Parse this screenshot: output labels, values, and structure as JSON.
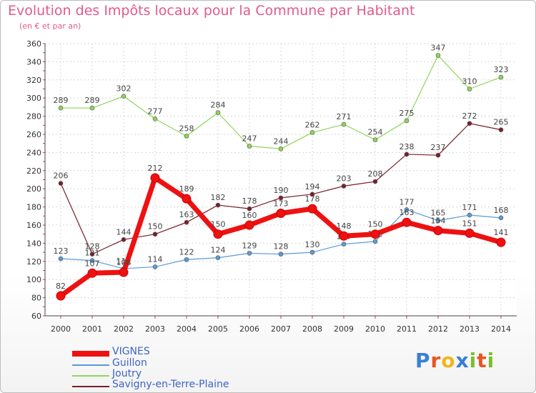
{
  "header": {
    "title": "Evolution des Impôts locaux pour la Commune par Habitant",
    "subtitle": "(en € et par an)"
  },
  "logo": {
    "letters": [
      "P",
      "r",
      "o",
      "x",
      "i",
      "t",
      "i"
    ],
    "colors": [
      "#3a7fd5",
      "#e8561f",
      "#f0b61f",
      "#3a7fd5",
      "#7abf2c",
      "#e8561f",
      "#7abf2c"
    ]
  },
  "chart_data": {
    "type": "line",
    "title": "Evolution des Impôts locaux pour la Commune par Habitant",
    "subtitle": "(en € et par an)",
    "xlabel": "",
    "ylabel": "",
    "categories": [
      "2000",
      "2001",
      "2002",
      "2003",
      "2004",
      "2005",
      "2006",
      "2007",
      "2008",
      "2009",
      "2010",
      "2011",
      "2012",
      "2013",
      "2014"
    ],
    "yticks": [
      60,
      80,
      100,
      120,
      140,
      160,
      180,
      200,
      220,
      240,
      260,
      280,
      300,
      320,
      340,
      360
    ],
    "ylim": [
      60,
      360
    ],
    "grid": true,
    "legend_position": "bottom-left",
    "series": [
      {
        "name": "Savigny-en-Terre-Plaine",
        "color": "#7a1f2b",
        "values": [
          206,
          128,
          144,
          150,
          163,
          182,
          178,
          190,
          194,
          203,
          208,
          238,
          237,
          272,
          265
        ]
      },
      {
        "name": "Joutry",
        "color": "#8fd45b",
        "values": [
          289,
          289,
          302,
          277,
          258,
          284,
          247,
          244,
          262,
          271,
          254,
          275,
          347,
          310,
          323
        ]
      },
      {
        "name": "Guillon",
        "color": "#5b9bd5",
        "values": [
          123,
          121,
          112,
          114,
          122,
          124,
          129,
          128,
          130,
          139,
          142,
          177,
          165,
          171,
          168
        ]
      },
      {
        "name": "VIGNES",
        "color": "#ee1111",
        "values": [
          82,
          107,
          108,
          212,
          189,
          150,
          160,
          173,
          178,
          148,
          150,
          163,
          154,
          151,
          141
        ]
      }
    ],
    "legend": [
      "VIGNES",
      "Guillon",
      "Joutry",
      "Savigny-en-Terre-Plaine"
    ]
  }
}
